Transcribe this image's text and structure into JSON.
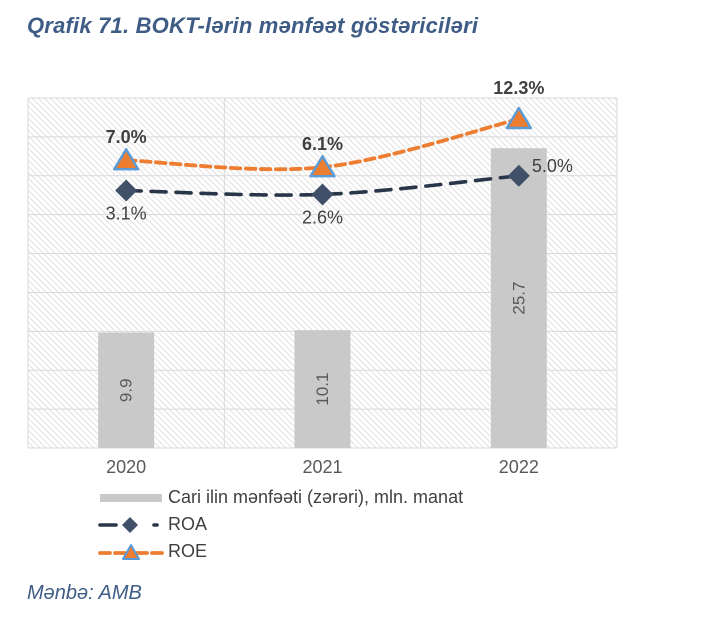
{
  "header": {
    "title": "Qrafik 71. BOKT-lərin mənfəət göstəriciləri"
  },
  "footer": {
    "source": "Mənbə: AMB"
  },
  "colors": {
    "title_text": "#3e5c85",
    "bar_fill": "#c9c9c9",
    "roa_line": "#293649",
    "roa_marker": "#3f5068",
    "roe_line": "#ed7d31",
    "roe_marker_fill": "#ed7d31",
    "roe_marker_border": "#5b9bd5",
    "grid_line": "#d9d9d9",
    "hatch_line": "#e3e3e3",
    "axis_text": "#595959",
    "bar_label_text": "#595959",
    "data_label_text": "#404040"
  },
  "chart_data": {
    "type": "combo-bar-line",
    "categories": [
      "2020",
      "2021",
      "2022"
    ],
    "series": [
      {
        "name": "Cari ilin mənfəəti (zərəri), mln. manat",
        "type": "bar",
        "axis": "left",
        "values": [
          9.9,
          10.1,
          25.7
        ],
        "labels": [
          "9.9",
          "10.1",
          "25.7"
        ],
        "color": "#c9c9c9"
      },
      {
        "name": "ROA",
        "type": "line",
        "axis": "right",
        "values": [
          3.1,
          2.6,
          5.0
        ],
        "labels": [
          "3.1%",
          "2.6%",
          "5.0%"
        ],
        "label_pos": [
          "below",
          "below",
          "right"
        ],
        "bold_labels": false,
        "color": "#293649",
        "marker": "diamond",
        "marker_color": "#3f5068"
      },
      {
        "name": "ROE",
        "type": "line",
        "axis": "right",
        "values": [
          7.0,
          6.1,
          12.3
        ],
        "labels": [
          "7.0%",
          "6.1%",
          "12.3%"
        ],
        "label_pos": [
          "above",
          "above",
          "above"
        ],
        "bold_labels": true,
        "color": "#ed7d31",
        "marker": "triangle",
        "marker_color": "#ed7d31",
        "marker_border": "#5b9bd5"
      }
    ],
    "axes": {
      "left": {
        "min": 0,
        "max": 30
      },
      "right": {
        "min": -30,
        "max": 15
      }
    },
    "grid": {
      "rows": 9,
      "cols": 3
    },
    "legend_position": "bottom-left",
    "plot_background": "diagonal-hatch"
  },
  "legend": {
    "items": [
      {
        "label": "Cari ilin mənfəəti (zərəri), mln. manat",
        "swatch": "bar"
      },
      {
        "label": "ROA",
        "swatch": "roa"
      },
      {
        "label": "ROE",
        "swatch": "roe"
      }
    ]
  }
}
